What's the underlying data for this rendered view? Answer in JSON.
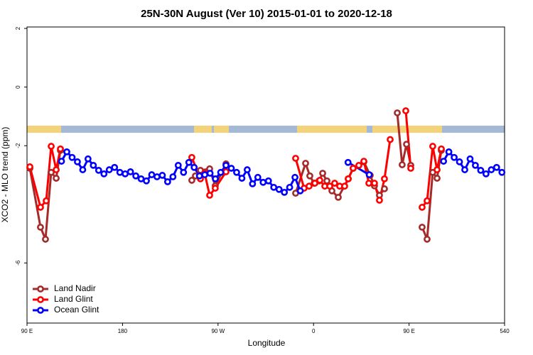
{
  "chart_data": {
    "type": "line",
    "title": "25N-30N August (Ver 10)   2015-01-01 to 2020-12-18",
    "x_label": "Longitude",
    "y_label": "XCO2 - MLO trend (ppm)",
    "xlim": [
      90,
      540
    ],
    "xticks": [
      {
        "value": 90,
        "label": "90 E"
      },
      180,
      {
        "value": 270,
        "label": "90 W"
      },
      {
        "value": 360,
        "label": "0"
      },
      {
        "value": 450,
        "label": "90 E"
      },
      540
    ],
    "ylim": [
      -8.05,
      2.05
    ],
    "yticks": [
      2,
      0,
      -2,
      -6
    ],
    "legend": "bottom-left",
    "series": [
      {
        "name": "Land Nadir",
        "color": "#a52a2a",
        "x": [
          92.7,
          102.7,
          107.4,
          112.8,
          117.5,
          121.5,
          null,
          245.3,
          248.7,
          253.4,
          262.1,
          267.4,
          277.5,
          null,
          343.1,
          352.5,
          356.5,
          360.5,
          365.2,
          368.6,
          372.6,
          377.3,
          383.3,
          392.7,
          397.3,
          407.4,
          413.4,
          417.4,
          422.1,
          426.8,
          null,
          438.9,
          443.5,
          447.6,
          451.6,
          null,
          462.3,
          467,
          472.3,
          476.4,
          480.4
        ],
        "values": [
          -2.77,
          -4.78,
          -5.19,
          -2.91,
          -3.11,
          -2.16,
          null,
          -3.18,
          -3.03,
          -2.84,
          -2.79,
          -3.37,
          -2.62,
          null,
          -3.62,
          -2.6,
          -3.03,
          -3.28,
          -3.2,
          -2.94,
          -3.2,
          -3.54,
          -3.76,
          -3.13,
          -2.77,
          -2.55,
          -3.01,
          -3.37,
          -3.69,
          -3.47,
          null,
          -0.88,
          -2.65,
          -1.95,
          -2.67,
          null,
          -4.78,
          -5.19,
          -2.91,
          -3.11,
          -2.16
        ]
      },
      {
        "name": "Land Glint",
        "color": "#ff0000",
        "x": [
          92.7,
          102.7,
          108.1,
          112.8,
          117.5,
          121.5,
          null,
          245.3,
          253.4,
          257.4,
          262.1,
          267.4,
          277.5,
          null,
          343.1,
          351.1,
          355.8,
          361.2,
          365.9,
          370.6,
          375.3,
          379.9,
          384.6,
          389.3,
          392.7,
          397.3,
          402.7,
          407.4,
          412.1,
          417.4,
          422.1,
          426.8,
          432.2,
          null,
          446.9,
          451.6,
          null,
          462.3,
          467,
          472.3,
          476.4,
          480.4
        ],
        "values": [
          -2.72,
          -4.1,
          -3.88,
          -2.02,
          -2.82,
          -2.11,
          null,
          -2.4,
          -3.13,
          -2.94,
          -3.69,
          -3.45,
          -2.89,
          null,
          -2.43,
          -3.45,
          -3.38,
          -3.28,
          -3.18,
          -3.38,
          -3.38,
          -3.28,
          -3.38,
          -3.38,
          -3.13,
          -2.77,
          -2.67,
          -2.53,
          -3.28,
          -3.28,
          -3.86,
          -3.13,
          -1.79,
          null,
          -0.81,
          -2.77,
          null,
          -4.1,
          -3.88,
          -2.02,
          -2.82,
          -2.11
        ]
      },
      {
        "name": "Ocean Glint",
        "color": "#0000ff",
        "x": [
          122.5,
          127.5,
          132.5,
          137.5,
          142.5,
          147.5,
          152.5,
          157.5,
          162.5,
          167.5,
          172.5,
          177.5,
          182.5,
          187.5,
          192.5,
          197.5,
          202.5,
          207.5,
          212.5,
          217.5,
          222.5,
          227.5,
          232.5,
          237.5,
          242.5,
          247.5,
          252.5,
          257.5,
          262.5,
          267.5,
          272.5,
          277.5,
          282.5,
          287.5,
          292.5,
          297.5,
          302.5,
          307.5,
          312.5,
          317.5,
          322.5,
          327.5,
          332.5,
          337.5,
          342.5,
          347.5,
          null,
          392.5,
          412.5,
          null,
          482.5,
          487.5,
          492.5,
          497.5,
          502.5,
          507.5,
          512.5,
          517.5,
          522.5,
          527.5,
          532.5,
          537.5
        ],
        "values": [
          -2.53,
          -2.21,
          -2.4,
          -2.55,
          -2.82,
          -2.45,
          -2.67,
          -2.84,
          -2.96,
          -2.82,
          -2.74,
          -2.91,
          -2.96,
          -2.89,
          -3.03,
          -3.13,
          -3.2,
          -2.99,
          -3.06,
          -3.01,
          -3.23,
          -3.06,
          -2.67,
          -2.91,
          -2.57,
          -2.74,
          -3.03,
          -2.99,
          -2.94,
          -3.13,
          -2.91,
          -2.67,
          -2.77,
          -2.91,
          -3.11,
          -2.82,
          -3.3,
          -3.08,
          -3.25,
          -3.2,
          -3.42,
          -3.49,
          -3.59,
          -3.42,
          -3.08,
          -3.54,
          null,
          -2.57,
          -2.99,
          null,
          -2.53,
          -2.21,
          -2.4,
          -2.55,
          -2.82,
          -2.45,
          -2.67,
          -2.84,
          -2.96,
          -2.82,
          -2.74,
          -2.91
        ]
      }
    ]
  }
}
